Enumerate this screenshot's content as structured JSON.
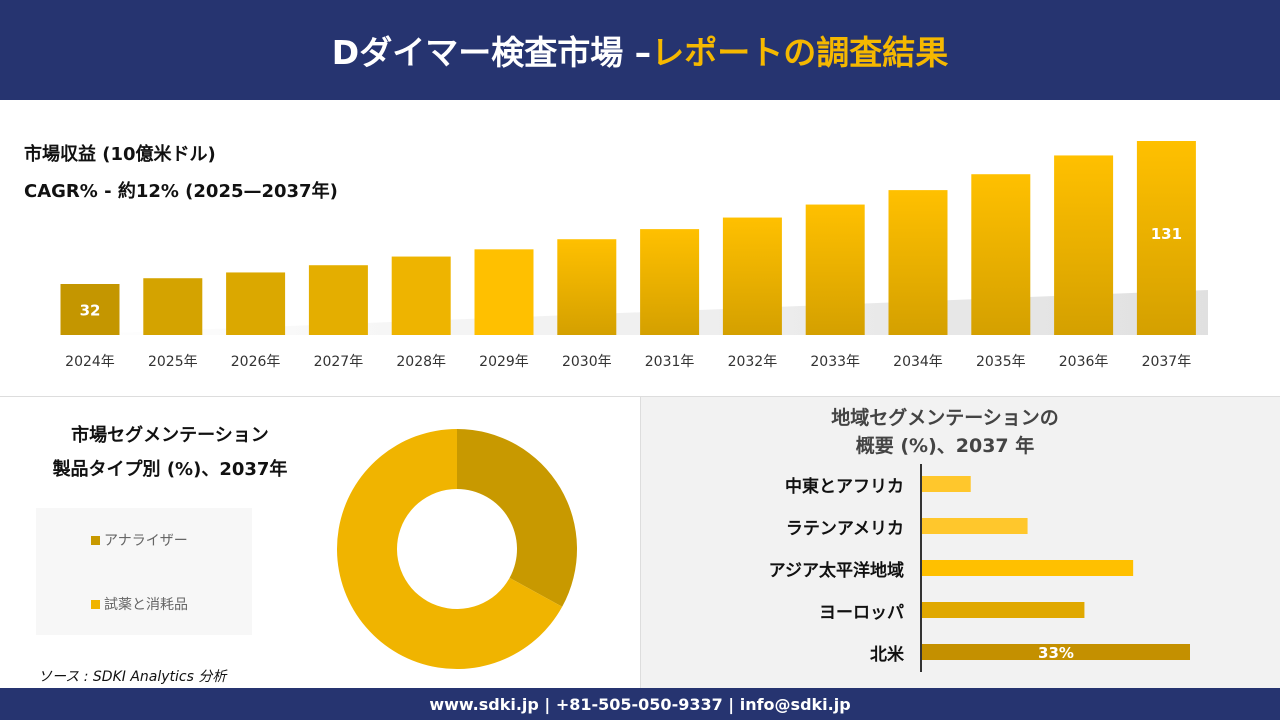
{
  "header": {
    "title_white": "Dダイマー検査市場 –",
    "title_yellow": "レポートの調査結果"
  },
  "footer": {
    "text": "www.sdki.jp | +81-505-050-9337 | info@sdki.jp"
  },
  "source": "ソース : SDKI Analytics 分析",
  "colors": {
    "navy": "#263470",
    "accent": "#f5b800"
  },
  "chart_data": [
    {
      "type": "bar",
      "title": "市場収益 (10億米ドル)",
      "subtitle": "CAGR% - 約12% (2025—2037年)",
      "categories": [
        "2024年",
        "2025年",
        "2026年",
        "2027年",
        "2028年",
        "2029年",
        "2030年",
        "2031年",
        "2032年",
        "2033年",
        "2034年",
        "2035年",
        "2036年",
        "2037年"
      ],
      "values": [
        32,
        36,
        40,
        45,
        51,
        56,
        63,
        70,
        78,
        87,
        97,
        108,
        121,
        131
      ],
      "data_labels": {
        "0": "32",
        "13": "131"
      }
    },
    {
      "type": "pie",
      "title_line1": "市場セグメンテーション",
      "title_line2": "製品タイプ別 (%)、2037年",
      "categories": [
        "アナライザー",
        "試薬と消耗品"
      ],
      "values": [
        33,
        67
      ],
      "colors": [
        "#c89900",
        "#f0b400"
      ],
      "legend": "left"
    },
    {
      "type": "bar",
      "orientation": "horizontal",
      "title_line1": "地域セグメンテーションの",
      "title_line2": "概要 (%)、2037 年",
      "categories": [
        "中東とアフリカ",
        "ラテンアメリカ",
        "アジア太平洋地域",
        "ヨーロッパ",
        "北米"
      ],
      "values": [
        6,
        13,
        26,
        20,
        33
      ],
      "colors": [
        "#ffc72c",
        "#ffc72c",
        "#ffc000",
        "#e0a800",
        "#c49000"
      ],
      "data_labels": {
        "4": "33%"
      }
    }
  ]
}
